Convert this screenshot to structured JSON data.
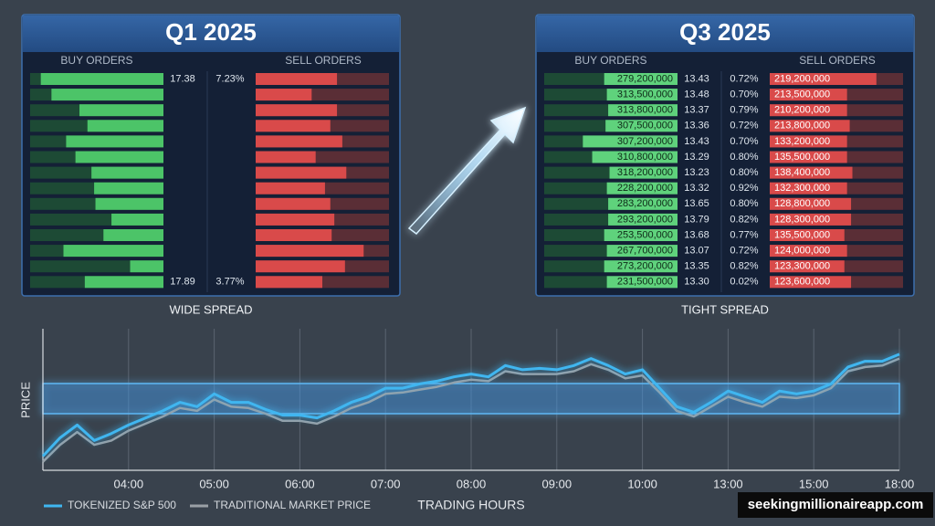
{
  "panels": [
    {
      "title": "Q1 2025",
      "buy_header": "BUY ORDERS",
      "sell_header": "SELL ORDERS",
      "caption": "WIDE SPREAD",
      "buy_depth": [
        92,
        84,
        63,
        57,
        73,
        66,
        54,
        52,
        51,
        39,
        45,
        75,
        25,
        59
      ],
      "sell_depth": [
        61,
        42,
        61,
        56,
        65,
        45,
        68,
        52,
        56,
        59,
        57,
        81,
        67,
        50
      ],
      "buy_volumes": [
        null,
        null,
        null,
        null,
        null,
        null,
        null,
        null,
        null,
        null,
        null,
        null,
        null,
        null
      ],
      "prices": [
        "17.38",
        null,
        null,
        null,
        null,
        null,
        null,
        null,
        null,
        null,
        null,
        null,
        null,
        "17.89"
      ],
      "spreads": [
        "7.23%",
        null,
        null,
        null,
        null,
        null,
        null,
        null,
        null,
        null,
        null,
        null,
        null,
        "3.77%"
      ],
      "sell_volumes": [
        null,
        null,
        null,
        null,
        null,
        null,
        null,
        null,
        null,
        null,
        null,
        null,
        null,
        null
      ]
    },
    {
      "title": "Q3 2025",
      "buy_header": "BUY ORDERS",
      "sell_header": "SELL ORDERS",
      "caption": "TIGHT SPREAD",
      "buy_depth": [
        55,
        53,
        52,
        54,
        71,
        64,
        51,
        53,
        52,
        52,
        55,
        53,
        55,
        53
      ],
      "sell_depth": [
        80,
        58,
        58,
        60,
        58,
        58,
        62,
        58,
        61,
        61,
        56,
        58,
        56,
        61
      ],
      "buy_volumes": [
        "279,200,000",
        "313,500,000",
        "313,800,000",
        "307,500,000",
        "307,200,000",
        "310,800,000",
        "318,200,000",
        "228,200,000",
        "283,200,000",
        "293,200,000",
        "253,500,000",
        "267,700,000",
        "273,200,000",
        "231,500,000"
      ],
      "prices": [
        "13.43",
        "13.48",
        "13.37",
        "13.36",
        "13.43",
        "13.29",
        "13.23",
        "13.32",
        "13.65",
        "13.79",
        "13.68",
        "13.07",
        "13.35",
        "13.30"
      ],
      "spreads": [
        "0.72%",
        "0.70%",
        "0.79%",
        "0.72%",
        "0.70%",
        "0.80%",
        "0.80%",
        "0.92%",
        "0.80%",
        "0.82%",
        "0.77%",
        "0.72%",
        "0.82%",
        "0.02%"
      ],
      "sell_volumes": [
        "219,200,000",
        "213,500,000",
        "210,200,000",
        "213,800,000",
        "133,200,000",
        "135,500,000",
        "138,400,000",
        "132,300,000",
        "128,800,000",
        "128,300,000",
        "135,500,000",
        "124,000,000",
        "123,300,000",
        "123,600,000"
      ]
    }
  ],
  "chart_data": {
    "type": "line",
    "ylabel": "PRICE",
    "xlabel": "TRADING HOURS",
    "x": [
      -1,
      -0.8,
      -0.6,
      -0.4,
      -0.2,
      0,
      0.2,
      0.4,
      0.6,
      0.8,
      1,
      1.2,
      1.4,
      1.6,
      1.8,
      2,
      2.2,
      2.4,
      2.6,
      2.8,
      3,
      3.2,
      3.4,
      3.6,
      3.8,
      4,
      4.2,
      4.4,
      4.6,
      4.8,
      5,
      5.2,
      5.4,
      5.6,
      5.8,
      6,
      6.2,
      6.4,
      6.6,
      6.8,
      7,
      7.2,
      7.4,
      7.6,
      7.8,
      8,
      8.2,
      8.4,
      8.6,
      8.8,
      9
    ],
    "series": [
      {
        "name": "TOKENIZED S&P 500",
        "color": "#3fb6f0",
        "values": [
          10,
          23,
          32,
          21,
          26,
          32,
          37,
          42,
          48,
          45,
          54,
          48,
          48,
          43,
          39,
          39,
          37,
          42,
          48,
          52,
          58,
          58,
          61,
          63,
          66,
          68,
          66,
          74,
          71,
          72,
          71,
          74,
          79,
          74,
          68,
          71,
          58,
          45,
          41,
          48,
          56,
          52,
          48,
          56,
          54,
          56,
          61,
          73,
          77,
          77,
          82
        ]
      },
      {
        "name": "TRADITIONAL MARKET PRICE",
        "color": "#9aa0a6",
        "values": [
          6,
          18,
          27,
          18,
          21,
          28,
          33,
          38,
          44,
          42,
          50,
          45,
          44,
          40,
          35,
          35,
          33,
          38,
          44,
          48,
          54,
          55,
          57,
          59,
          62,
          64,
          63,
          70,
          68,
          68,
          68,
          70,
          75,
          71,
          65,
          67,
          55,
          42,
          38,
          45,
          52,
          48,
          45,
          52,
          51,
          53,
          58,
          70,
          73,
          74,
          79
        ]
      }
    ],
    "xlim": [
      -1,
      9
    ],
    "xticks": [
      {
        "value": 0,
        "label": "04:00"
      },
      {
        "value": 1,
        "label": "05:00"
      },
      {
        "value": 2,
        "label": "06:00"
      },
      {
        "value": 3,
        "label": "07:00"
      },
      {
        "value": 4,
        "label": "08:00"
      },
      {
        "value": 5,
        "label": "09:00"
      },
      {
        "value": 6,
        "label": "10:00"
      },
      {
        "value": 7,
        "label": "13:00"
      },
      {
        "value": 8,
        "label": "15:00"
      },
      {
        "value": 9,
        "label": "18:00"
      }
    ],
    "ylim": [
      0,
      100
    ],
    "grid": true
  },
  "watermark": "seekingmillionaireapp.com"
}
